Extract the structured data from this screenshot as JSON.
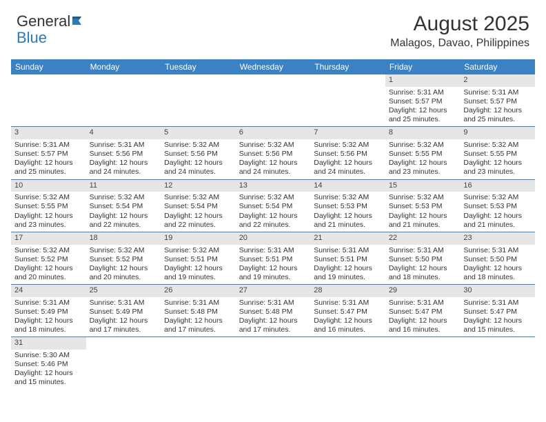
{
  "logo": {
    "text1": "General",
    "text2": "Blue"
  },
  "title": "August 2025",
  "location": "Malagos, Davao, Philippines",
  "colors": {
    "header_bg": "#3b82c4",
    "header_text": "#ffffff",
    "daynum_bg": "#e6e6e6",
    "border": "#3b82c4",
    "logo_blue": "#2a7ab8"
  },
  "weekdays": [
    "Sunday",
    "Monday",
    "Tuesday",
    "Wednesday",
    "Thursday",
    "Friday",
    "Saturday"
  ],
  "weeks": [
    [
      null,
      null,
      null,
      null,
      null,
      {
        "n": "1",
        "sr": "Sunrise: 5:31 AM",
        "ss": "Sunset: 5:57 PM",
        "d1": "Daylight: 12 hours",
        "d2": "and 25 minutes."
      },
      {
        "n": "2",
        "sr": "Sunrise: 5:31 AM",
        "ss": "Sunset: 5:57 PM",
        "d1": "Daylight: 12 hours",
        "d2": "and 25 minutes."
      }
    ],
    [
      {
        "n": "3",
        "sr": "Sunrise: 5:31 AM",
        "ss": "Sunset: 5:57 PM",
        "d1": "Daylight: 12 hours",
        "d2": "and 25 minutes."
      },
      {
        "n": "4",
        "sr": "Sunrise: 5:31 AM",
        "ss": "Sunset: 5:56 PM",
        "d1": "Daylight: 12 hours",
        "d2": "and 24 minutes."
      },
      {
        "n": "5",
        "sr": "Sunrise: 5:32 AM",
        "ss": "Sunset: 5:56 PM",
        "d1": "Daylight: 12 hours",
        "d2": "and 24 minutes."
      },
      {
        "n": "6",
        "sr": "Sunrise: 5:32 AM",
        "ss": "Sunset: 5:56 PM",
        "d1": "Daylight: 12 hours",
        "d2": "and 24 minutes."
      },
      {
        "n": "7",
        "sr": "Sunrise: 5:32 AM",
        "ss": "Sunset: 5:56 PM",
        "d1": "Daylight: 12 hours",
        "d2": "and 24 minutes."
      },
      {
        "n": "8",
        "sr": "Sunrise: 5:32 AM",
        "ss": "Sunset: 5:55 PM",
        "d1": "Daylight: 12 hours",
        "d2": "and 23 minutes."
      },
      {
        "n": "9",
        "sr": "Sunrise: 5:32 AM",
        "ss": "Sunset: 5:55 PM",
        "d1": "Daylight: 12 hours",
        "d2": "and 23 minutes."
      }
    ],
    [
      {
        "n": "10",
        "sr": "Sunrise: 5:32 AM",
        "ss": "Sunset: 5:55 PM",
        "d1": "Daylight: 12 hours",
        "d2": "and 23 minutes."
      },
      {
        "n": "11",
        "sr": "Sunrise: 5:32 AM",
        "ss": "Sunset: 5:54 PM",
        "d1": "Daylight: 12 hours",
        "d2": "and 22 minutes."
      },
      {
        "n": "12",
        "sr": "Sunrise: 5:32 AM",
        "ss": "Sunset: 5:54 PM",
        "d1": "Daylight: 12 hours",
        "d2": "and 22 minutes."
      },
      {
        "n": "13",
        "sr": "Sunrise: 5:32 AM",
        "ss": "Sunset: 5:54 PM",
        "d1": "Daylight: 12 hours",
        "d2": "and 22 minutes."
      },
      {
        "n": "14",
        "sr": "Sunrise: 5:32 AM",
        "ss": "Sunset: 5:53 PM",
        "d1": "Daylight: 12 hours",
        "d2": "and 21 minutes."
      },
      {
        "n": "15",
        "sr": "Sunrise: 5:32 AM",
        "ss": "Sunset: 5:53 PM",
        "d1": "Daylight: 12 hours",
        "d2": "and 21 minutes."
      },
      {
        "n": "16",
        "sr": "Sunrise: 5:32 AM",
        "ss": "Sunset: 5:53 PM",
        "d1": "Daylight: 12 hours",
        "d2": "and 21 minutes."
      }
    ],
    [
      {
        "n": "17",
        "sr": "Sunrise: 5:32 AM",
        "ss": "Sunset: 5:52 PM",
        "d1": "Daylight: 12 hours",
        "d2": "and 20 minutes."
      },
      {
        "n": "18",
        "sr": "Sunrise: 5:32 AM",
        "ss": "Sunset: 5:52 PM",
        "d1": "Daylight: 12 hours",
        "d2": "and 20 minutes."
      },
      {
        "n": "19",
        "sr": "Sunrise: 5:32 AM",
        "ss": "Sunset: 5:51 PM",
        "d1": "Daylight: 12 hours",
        "d2": "and 19 minutes."
      },
      {
        "n": "20",
        "sr": "Sunrise: 5:31 AM",
        "ss": "Sunset: 5:51 PM",
        "d1": "Daylight: 12 hours",
        "d2": "and 19 minutes."
      },
      {
        "n": "21",
        "sr": "Sunrise: 5:31 AM",
        "ss": "Sunset: 5:51 PM",
        "d1": "Daylight: 12 hours",
        "d2": "and 19 minutes."
      },
      {
        "n": "22",
        "sr": "Sunrise: 5:31 AM",
        "ss": "Sunset: 5:50 PM",
        "d1": "Daylight: 12 hours",
        "d2": "and 18 minutes."
      },
      {
        "n": "23",
        "sr": "Sunrise: 5:31 AM",
        "ss": "Sunset: 5:50 PM",
        "d1": "Daylight: 12 hours",
        "d2": "and 18 minutes."
      }
    ],
    [
      {
        "n": "24",
        "sr": "Sunrise: 5:31 AM",
        "ss": "Sunset: 5:49 PM",
        "d1": "Daylight: 12 hours",
        "d2": "and 18 minutes."
      },
      {
        "n": "25",
        "sr": "Sunrise: 5:31 AM",
        "ss": "Sunset: 5:49 PM",
        "d1": "Daylight: 12 hours",
        "d2": "and 17 minutes."
      },
      {
        "n": "26",
        "sr": "Sunrise: 5:31 AM",
        "ss": "Sunset: 5:48 PM",
        "d1": "Daylight: 12 hours",
        "d2": "and 17 minutes."
      },
      {
        "n": "27",
        "sr": "Sunrise: 5:31 AM",
        "ss": "Sunset: 5:48 PM",
        "d1": "Daylight: 12 hours",
        "d2": "and 17 minutes."
      },
      {
        "n": "28",
        "sr": "Sunrise: 5:31 AM",
        "ss": "Sunset: 5:47 PM",
        "d1": "Daylight: 12 hours",
        "d2": "and 16 minutes."
      },
      {
        "n": "29",
        "sr": "Sunrise: 5:31 AM",
        "ss": "Sunset: 5:47 PM",
        "d1": "Daylight: 12 hours",
        "d2": "and 16 minutes."
      },
      {
        "n": "30",
        "sr": "Sunrise: 5:31 AM",
        "ss": "Sunset: 5:47 PM",
        "d1": "Daylight: 12 hours",
        "d2": "and 15 minutes."
      }
    ],
    [
      {
        "n": "31",
        "sr": "Sunrise: 5:30 AM",
        "ss": "Sunset: 5:46 PM",
        "d1": "Daylight: 12 hours",
        "d2": "and 15 minutes."
      },
      null,
      null,
      null,
      null,
      null,
      null
    ]
  ]
}
